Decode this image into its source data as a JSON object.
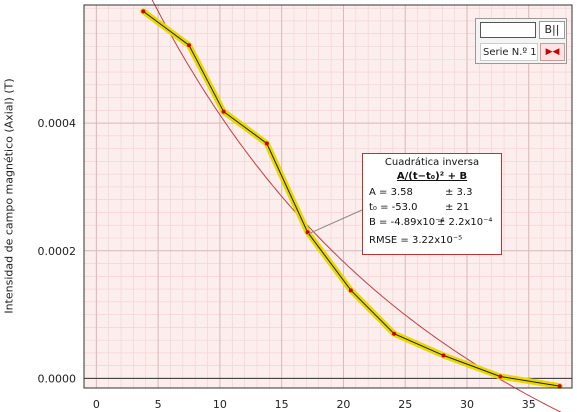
{
  "chart_data": {
    "type": "line",
    "ylabel": "Intensidad de campo magnético (Axial) (T)",
    "xlabel": "",
    "xlim": [
      -1,
      38.5
    ],
    "ylim": [
      -1.5e-05,
      0.000585
    ],
    "x_ticks": [
      0,
      5,
      10,
      15,
      20,
      25,
      30,
      35
    ],
    "x_tick_labels": [
      "0",
      "5",
      "10",
      "15",
      "20",
      "25",
      "30",
      "35"
    ],
    "y_ticks": [
      0,
      0.0002,
      0.0004
    ],
    "y_tick_labels": [
      "0.0000",
      "0.0002",
      "0.0004"
    ],
    "grid": true,
    "series": [
      {
        "x": [
          3.8,
          7.5,
          10.3,
          13.8,
          17.1,
          20.6,
          24.1,
          28.1,
          32.7,
          37.5
        ],
        "y": [
          0.000575,
          0.000522,
          0.000418,
          0.000368,
          0.000229,
          0.000138,
          7e-05,
          3.6e-05,
          3e-06,
          -1.2e-05
        ]
      }
    ],
    "fit": {
      "model": "A/(t-t0)^2 + B",
      "A": 3.58,
      "t0": -53.0,
      "B": -0.000489
    },
    "colors": {
      "background": "#fdeeee",
      "data_line": "#e8d800",
      "data_point": "#cc0000",
      "fit_line": "#c04040",
      "grid": "#d8b8b8"
    }
  },
  "legend": {
    "button_b": "B||",
    "series_label": "Serie N.º 1"
  },
  "fit_box": {
    "title": "Cuadrática inversa",
    "formula": "A/(t−t₀)² + B",
    "a_label": "A = 3.58",
    "a_err": "± 3.3",
    "t0_label": "t₀ = -53.0",
    "t0_err": "± 21",
    "b_label": "B = -4.89x10⁻⁴",
    "b_err": "± 2.2x10⁻⁴",
    "rmse": "RMSE = 3.22x10⁻⁵"
  }
}
